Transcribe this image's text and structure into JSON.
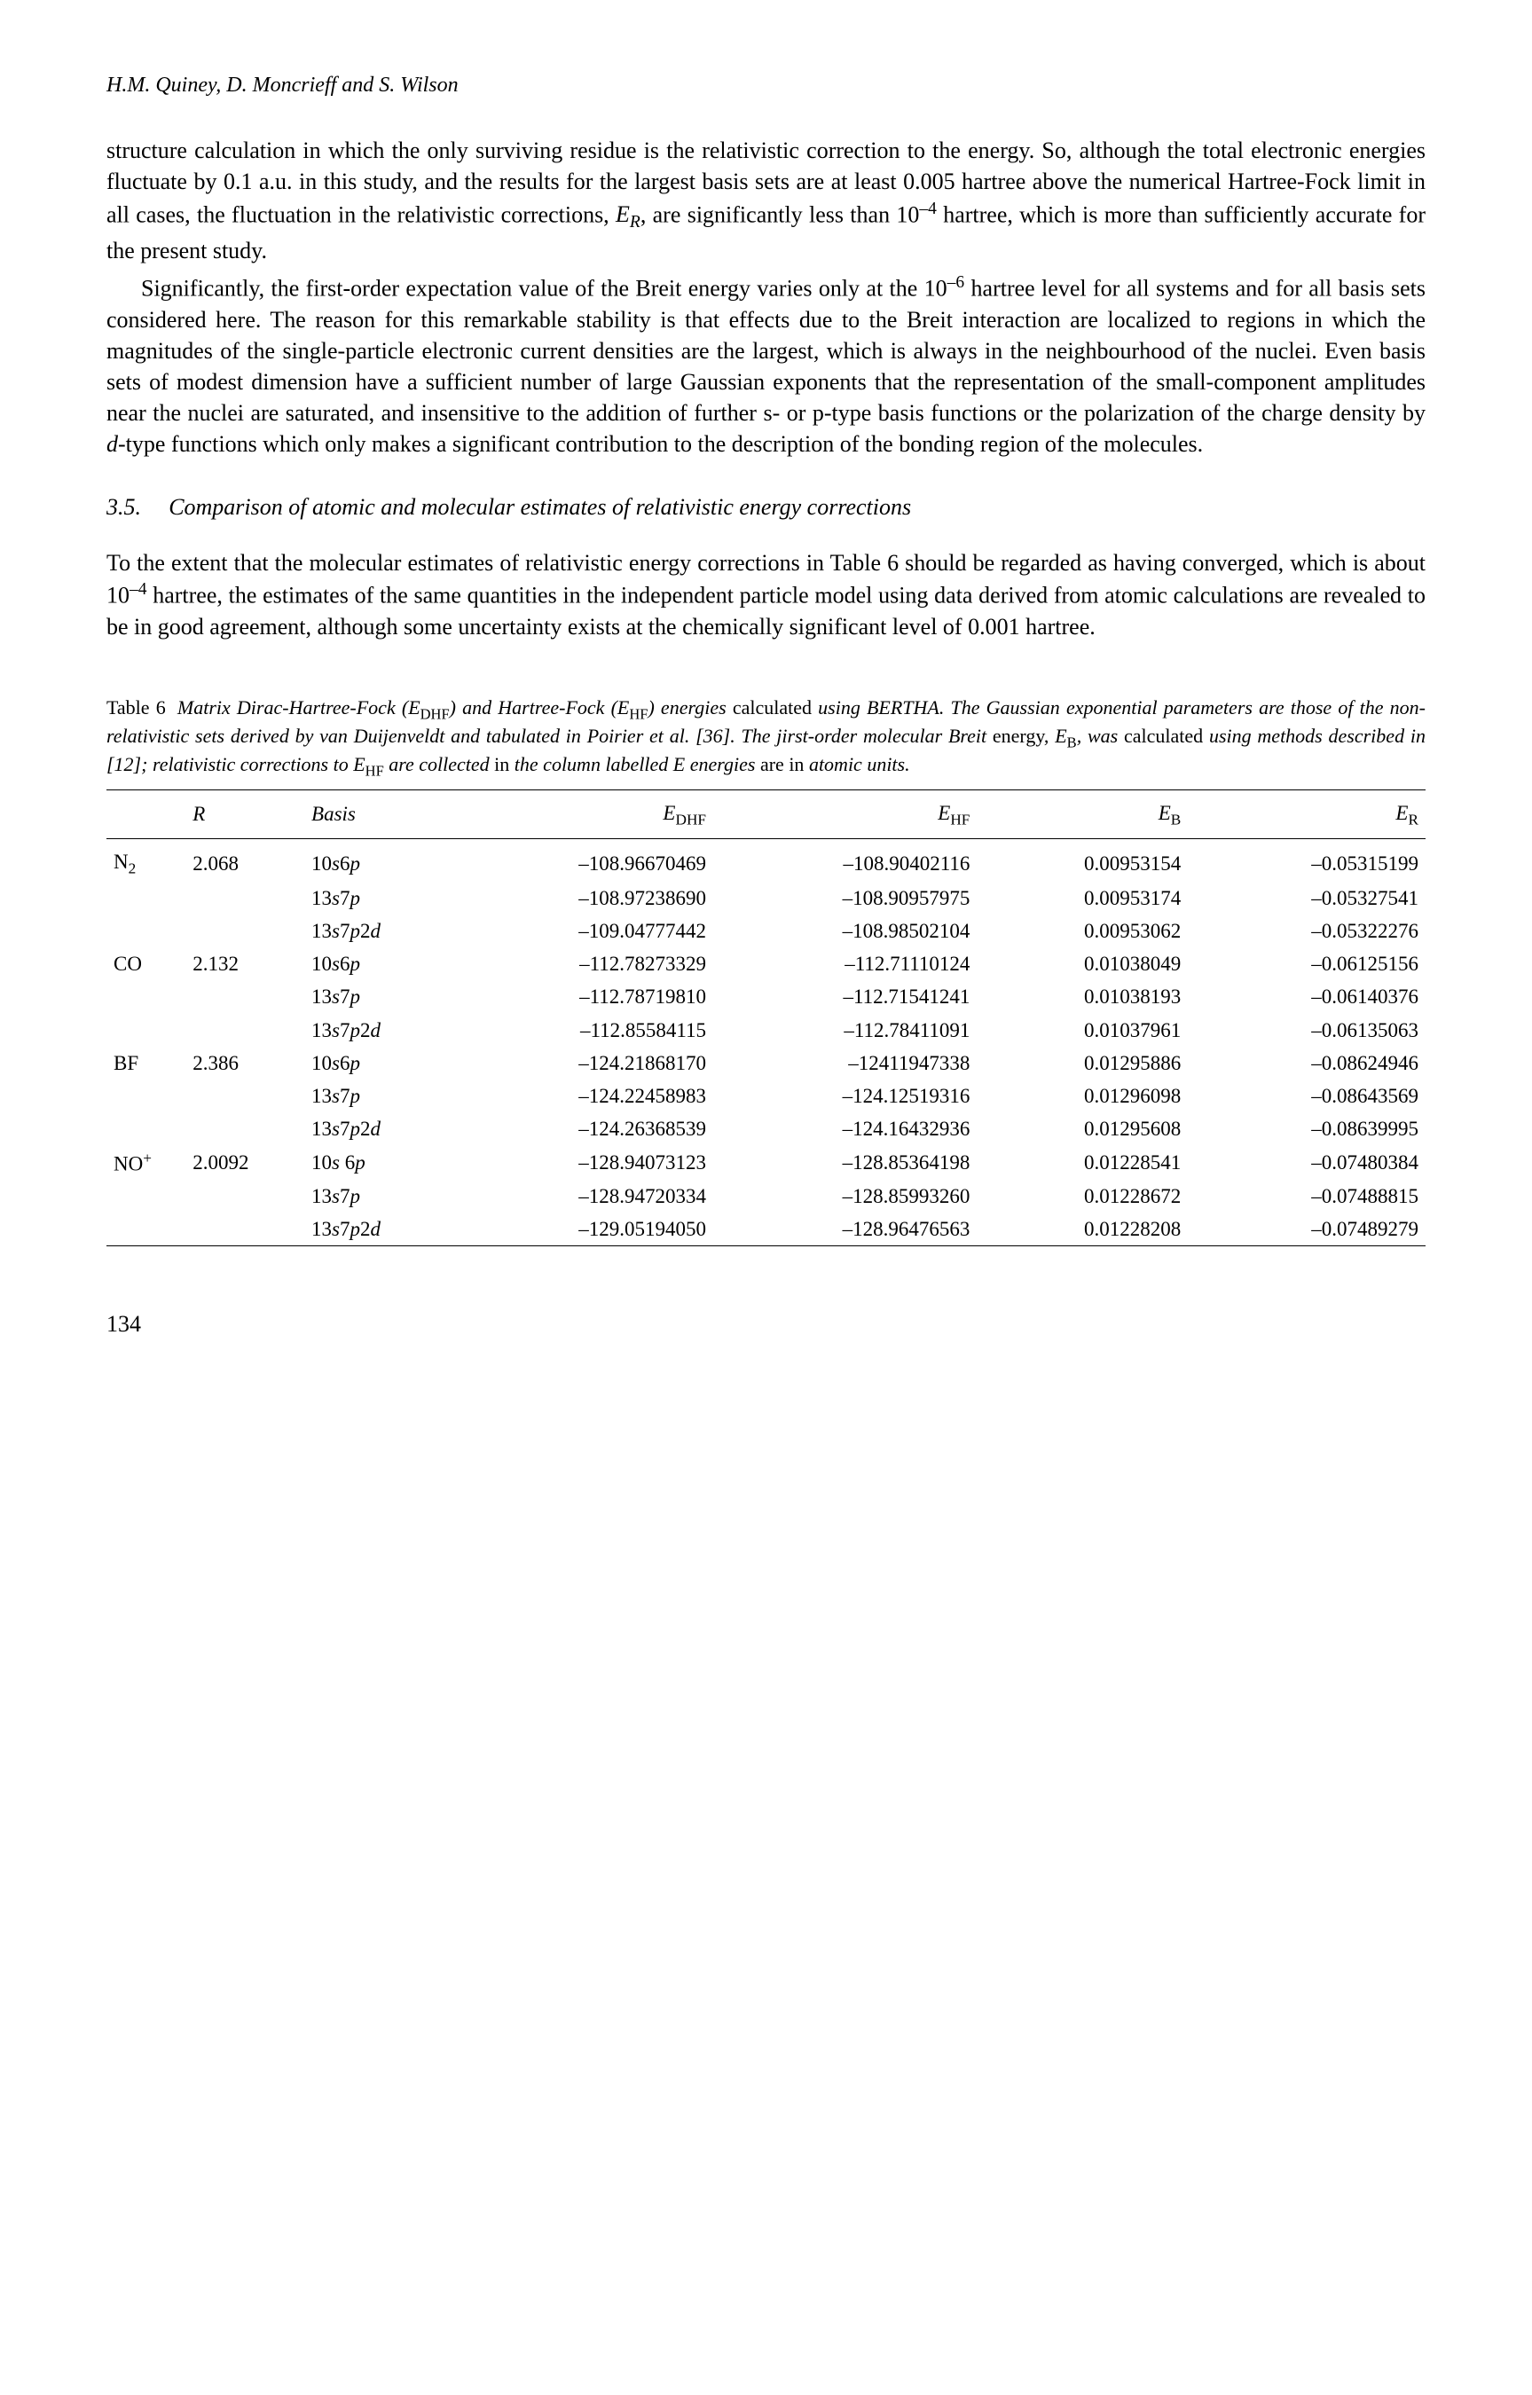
{
  "running_head": "H.M. Quiney, D. Moncrieff and S. Wilson",
  "para1": "structure calculation in which the only surviving residue is the relativistic correction to the energy. So, although the total electronic energies fluctuate by 0.1 a.u. in this study, and the results for the largest basis sets are at least 0.005 hartree above the numerical Hartree-Fock limit in all cases, the fluctuation in the relativistic corrections, E_R, are significantly less than 10^-4 hartree, which is more than sufficiently accurate for the present study.",
  "para2": "Significantly, the first-order expectation value of the Breit energy varies only at the 10^-6 hartree level for all systems and for all basis sets considered here. The reason for this remarkable stability is that effects due to the Breit interaction are localized to regions in which the magnitudes of the single-particle electronic current densities are the largest, which is always in the neighbourhood of the nuclei. Even basis sets of modest dimension have a sufficient number of large Gaussian exponents that the representation of the small-component amplitudes near the nuclei are saturated, and insensitive to the addition of further s- or p-type basis functions or the polarization of the charge density by d-type functions which only makes a significant contribution to the description of the bonding region of the molecules.",
  "section_num": "3.5.",
  "section_title": "Comparison of atomic and molecular estimates of relativistic energy corrections",
  "para3": "To the extent that the molecular estimates of relativistic energy corrections in Table 6 should be regarded as having converged, which is about 10^-4 hartree, the estimates of the same quantities in the independent particle model using data derived from atomic calculations are revealed to be in good agreement, although some uncertainty exists at the chemically significant level of 0.001 hartree.",
  "table": {
    "label": "Table 6",
    "caption": "Matrix Dirac-Hartree-Fock (E_DHF) and Hartree-Fock (E_HF) energies calculated using BERTHA. The Gaussian exponential parameters are those of the non-relativistic sets derived by van Duijenveldt and tabulated in Poirier et al. [36]. The jirst-order molecular Breit energy, E_B, was calculated using methods described in [12]; relativistic corrections to E_HF are collected in the column labelled E energies are in atomic units.",
    "headers": [
      "",
      "R",
      "Basis",
      "E_DHF",
      "E_HF",
      "E_B",
      "E_R"
    ],
    "header_fontsize": 23,
    "body_fontsize": 23,
    "col_align": [
      "left",
      "left",
      "left",
      "right",
      "right",
      "right",
      "right"
    ],
    "rule_color": "#000000",
    "groups": [
      {
        "mol": "N2",
        "R": "2.068",
        "rows": [
          {
            "basis": "10s6p",
            "edhf": "–108.96670469",
            "ehf": "–108.90402116",
            "eb": "0.00953154",
            "er": "–0.05315199"
          },
          {
            "basis": "13s7p",
            "edhf": "–108.97238690",
            "ehf": "–108.90957975",
            "eb": "0.00953174",
            "er": "–0.05327541"
          },
          {
            "basis": "13s7p2d",
            "edhf": "–109.04777442",
            "ehf": "–108.98502104",
            "eb": "0.00953062",
            "er": "–0.05322276"
          }
        ]
      },
      {
        "mol": "CO",
        "R": "2.132",
        "rows": [
          {
            "basis": "10s6p",
            "edhf": "–112.78273329",
            "ehf": "–112.71110124",
            "eb": "0.01038049",
            "er": "–0.06125156"
          },
          {
            "basis": "13s7p",
            "edhf": "–112.78719810",
            "ehf": "–112.71541241",
            "eb": "0.01038193",
            "er": "–0.06140376"
          },
          {
            "basis": "13s7p2d",
            "edhf": "–112.85584115",
            "ehf": "–112.78411091",
            "eb": "0.01037961",
            "er": "–0.06135063"
          }
        ]
      },
      {
        "mol": "BF",
        "R": "2.386",
        "rows": [
          {
            "basis": "10s6p",
            "edhf": "–124.21868170",
            "ehf": "–12411947338",
            "eb": "0.01295886",
            "er": "–0.08624946"
          },
          {
            "basis": "13s7p",
            "edhf": "–124.22458983",
            "ehf": "–124.12519316",
            "eb": "0.01296098",
            "er": "–0.08643569"
          },
          {
            "basis": "13s7p2d",
            "edhf": "–124.26368539",
            "ehf": "–124.16432936",
            "eb": "0.01295608",
            "er": "–0.08639995"
          }
        ]
      },
      {
        "mol": "NO+",
        "R": "2.0092",
        "rows": [
          {
            "basis": "10s 6p",
            "edhf": "–128.94073123",
            "ehf": "–128.85364198",
            "eb": "0.01228541",
            "er": "–0.07480384"
          },
          {
            "basis": "13s7p",
            "edhf": "–128.94720334",
            "ehf": "–128.85993260",
            "eb": "0.01228672",
            "er": "–0.07488815"
          },
          {
            "basis": "13s7p2d",
            "edhf": "–129.05194050",
            "ehf": "–128.96476563",
            "eb": "0.01228208",
            "er": "–0.07489279"
          }
        ]
      }
    ]
  },
  "page_number": "134"
}
